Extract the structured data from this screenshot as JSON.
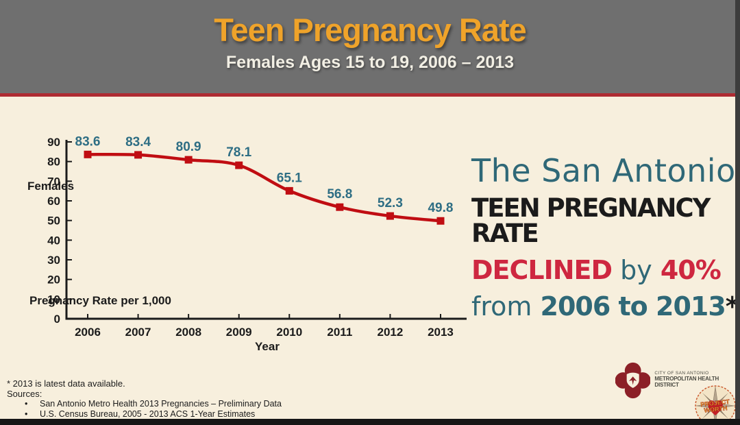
{
  "header": {
    "title": "Teen Pregnancy Rate",
    "subtitle": "Females Ages 15 to 19, 2006 – 2013",
    "title_color": "#EFA32A",
    "background_color": "#6F6F6F",
    "divider_color": "#AE2B32"
  },
  "chart_data": {
    "type": "line",
    "categories": [
      "2006",
      "2007",
      "2008",
      "2009",
      "2010",
      "2011",
      "2012",
      "2013"
    ],
    "series": [
      {
        "name": "Teen Pregnancy Rate",
        "values": [
          83.6,
          83.4,
          80.9,
          78.1,
          65.1,
          56.8,
          52.3,
          49.8
        ]
      }
    ],
    "xlabel": "Year",
    "ylabel_top": "Females",
    "ylabel_bottom": "Pregnancy Rate per 1,000",
    "ylim": [
      0,
      90
    ],
    "ytick_step": 10,
    "grid": false,
    "legend": "none",
    "marker": "square",
    "line_color": "#C00D12",
    "data_label_color": "#2E6E84",
    "axis_color": "#1B1B1B",
    "background_color": "#F7EFDD"
  },
  "callout": {
    "line1": "The San Antonio",
    "line2": "TEEN PREGNANCY RATE",
    "line3_declined": "DECLINED",
    "line3_by": " by ",
    "line3_pct": "40%",
    "line4_from": "from ",
    "line4_years": "2006 to 2013",
    "line4_asterisk": "*",
    "teal_color": "#2F6877",
    "red_color": "#CE2740"
  },
  "footnotes": {
    "note": "* 2013 is latest data available.",
    "sources_label": "Sources:",
    "items": [
      "San Antonio Metro Health 2013 Pregnancies – Preliminary Data",
      "U.S. Census Bureau, 2005 - 2013 ACS 1-Year Estimates"
    ]
  },
  "logos": {
    "metro_health": {
      "line1": "CITY OF SAN ANTONIO",
      "line2": "METROPOLITAN HEALTH DISTRICT",
      "emblem_color": "#8C2027"
    },
    "project_worth": {
      "line1": "PROJECT",
      "line2": "WORTH",
      "heart_color": "#C32026",
      "text_color": "#F2C12E"
    }
  }
}
